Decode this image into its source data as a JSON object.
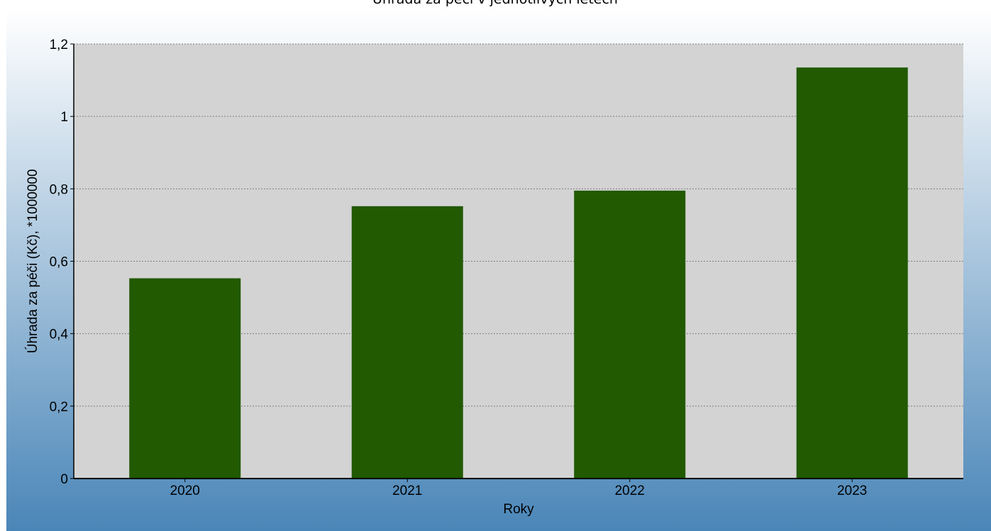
{
  "colors": {
    "background_top": "#ffffff",
    "background_bottom": "#4a86b8",
    "plot_area": "#d3d3d3",
    "bar": "#215a00",
    "grid": "#7f7f7f",
    "axis": "#000000"
  },
  "chart_data": {
    "type": "bar",
    "title": "Úhrada za péči v jednotlivých letech",
    "xlabel": "Roky",
    "ylabel": "Úhrada za péči (Kč), *1000000",
    "categories": [
      "2020",
      "2021",
      "2022",
      "2023"
    ],
    "series": [
      {
        "values": [
          0.553,
          0.752,
          0.795,
          1.135
        ]
      }
    ],
    "ylim": [
      0,
      1.2
    ],
    "yticks": [
      {
        "value": 0,
        "label": "0"
      },
      {
        "value": 0.2,
        "label": "0,2"
      },
      {
        "value": 0.4,
        "label": "0,4"
      },
      {
        "value": 0.6,
        "label": "0,6"
      },
      {
        "value": 0.8,
        "label": "0,8"
      },
      {
        "value": 1.0,
        "label": "1"
      },
      {
        "value": 1.2,
        "label": "1,2"
      }
    ],
    "grid": true,
    "legend": "none"
  }
}
